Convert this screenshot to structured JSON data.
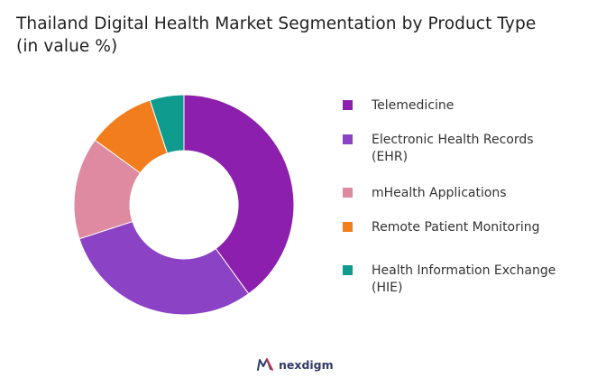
{
  "chart_data": {
    "type": "pie",
    "title": "Thailand Digital Health Market Segmentation by Product Type (in value %)",
    "categories": [
      "Telemedicine",
      "Electronic Health Records (EHR)",
      "mHealth Applications",
      "Remote Patient Monitoring",
      "Health Information Exchange (HIE)"
    ],
    "values": [
      40,
      30,
      15,
      10,
      5
    ],
    "colors": [
      "#8c1fad",
      "#8b42c4",
      "#de8aa0",
      "#f27d1c",
      "#0f9b8e"
    ],
    "donut": true,
    "legend_position": "right"
  },
  "brand": {
    "name": "nexdigm",
    "icon": "nexdigm-logo-icon"
  }
}
